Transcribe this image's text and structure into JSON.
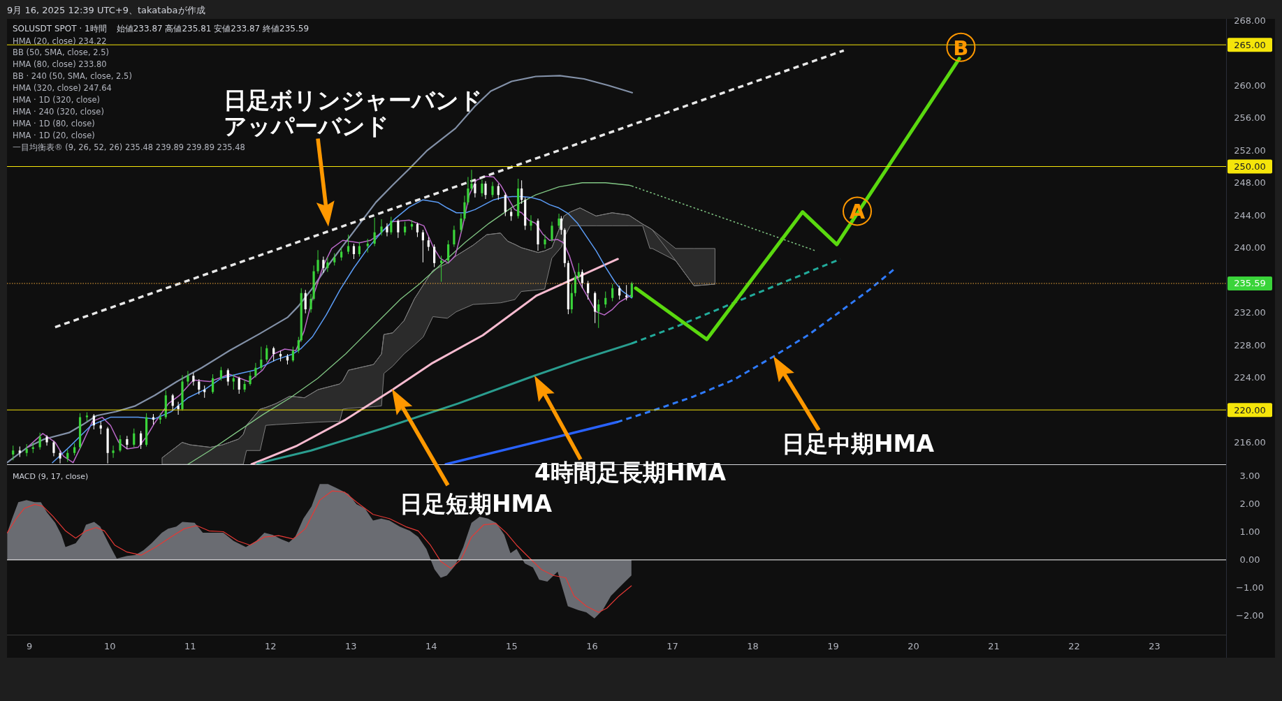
{
  "chart_data": [
    {
      "type": "candlestick",
      "title": "SOLUSDT SPOT · 1時間",
      "subtitle": "始値233.87 高値235.81 安値233.87 終値235.59",
      "xlim": [
        8.72,
        23.89
      ],
      "ylim": [
        213.3,
        268.2
      ],
      "tick_labels": "y",
      "yticks": [
        {
          "value": 216,
          "label": "216.00"
        },
        {
          "value": 224,
          "label": "224.00"
        },
        {
          "value": 228,
          "label": "228.00"
        },
        {
          "value": 232,
          "label": "232.00"
        },
        {
          "value": 240,
          "label": "240.00"
        },
        {
          "value": 244,
          "label": "244.00"
        },
        {
          "value": 248,
          "label": "248.00"
        },
        {
          "value": 252,
          "label": "252.00"
        },
        {
          "value": 256,
          "label": "256.00"
        },
        {
          "value": 260,
          "label": "260.00"
        },
        {
          "value": 268,
          "label": "268.00"
        }
      ],
      "ref_lines": [
        {
          "axis": "y",
          "value": 265,
          "label": "265.00",
          "color": "#f5e50a"
        },
        {
          "axis": "y",
          "value": 250,
          "label": "250.00",
          "color": "#f5e50a"
        },
        {
          "axis": "y",
          "value": 220,
          "label": "220.00",
          "color": "#f5e50a"
        },
        {
          "axis": "y",
          "value": 235.59,
          "label": "235.59",
          "color": "#f2a93b",
          "line_style": "dotted"
        }
      ],
      "annotations": [
        "9月 16, 2025 12:39 UTC+9、takatabaが作成",
        "HMA (20, close) 234.22",
        "BB (50, SMA, close, 2.5)",
        "HMA (80, close) 233.80",
        "BB · 240 (50, SMA, close, 2.5)",
        "HMA (320, close) 247.64",
        "HMA · 1D (320, close)",
        "HMA · 240 (320, close)",
        "HMA · 1D (80, close)",
        "HMA · 1D (20, close)",
        "一目均衡表® (9, 26, 52, 26) 235.48 239.89 239.89 235.48",
        "日足ボリンジャーバンドアッパーバンド",
        "日足短期HMA",
        "4時間足長期HMA",
        "日足中期HMA",
        {
          "text": "A",
          "x": 19.3,
          "y": 244.5
        },
        {
          "text": "B",
          "x": 20.59,
          "y": 264.7
        }
      ],
      "series": [
        {
          "x": [
            8.796,
            8.879,
            8.965,
            9.044,
            9.13,
            9.216,
            9.302,
            9.381,
            9.474,
            9.56,
            9.629,
            9.715,
            9.801,
            9.887,
            9.973,
            10.042,
            10.128,
            10.214,
            10.3,
            10.386,
            10.455,
            10.541,
            10.627,
            10.696,
            10.782,
            10.851,
            10.902,
            10.971,
            11.04,
            11.109,
            11.178,
            11.281,
            11.384,
            11.47,
            11.539,
            11.608,
            11.677,
            11.746,
            11.814,
            11.883,
            11.952,
            12.038,
            12.124,
            12.21,
            12.279,
            12.348,
            12.382,
            12.434,
            12.502,
            12.537,
            12.589,
            12.657,
            12.709,
            12.795,
            12.881,
            12.967,
            13.036,
            13.105,
            13.208,
            13.294,
            13.38,
            13.449,
            13.5,
            13.587,
            13.672,
            13.758,
            13.827,
            13.896,
            13.965,
            14.037,
            14.124,
            14.211,
            14.283,
            14.37,
            14.414,
            14.457,
            14.501,
            14.544,
            14.631,
            14.675,
            14.762,
            14.834,
            14.921,
            14.994,
            15.081,
            15.124,
            15.168,
            15.24,
            15.327,
            15.414,
            15.501,
            15.588,
            15.617,
            15.66,
            15.704,
            15.747,
            15.791,
            15.834,
            15.878,
            15.95,
            16.037,
            16.081,
            16.168,
            16.254,
            16.341,
            16.428,
            16.495
          ],
          "ohlc": [
            [
              214.5,
              215.6,
              213.8,
              215.0
            ],
            [
              215.0,
              215.5,
              214.2,
              214.7
            ],
            [
              214.7,
              215.8,
              214.3,
              215.2
            ],
            [
              215.2,
              216.0,
              214.7,
              215.4
            ],
            [
              215.4,
              217.2,
              215.1,
              216.7
            ],
            [
              216.7,
              216.9,
              215.6,
              216.0
            ],
            [
              216.0,
              216.2,
              214.3,
              214.7
            ],
            [
              214.7,
              215.0,
              213.4,
              214.0
            ],
            [
              214.0,
              215.1,
              213.6,
              214.7
            ],
            [
              214.7,
              215.9,
              214.4,
              215.4
            ],
            [
              215.4,
              219.6,
              215.2,
              219.1
            ],
            [
              219.1,
              219.7,
              218.6,
              219.3
            ],
            [
              219.3,
              219.5,
              217.6,
              218.1
            ],
            [
              218.1,
              218.6,
              217.0,
              217.7
            ],
            [
              217.7,
              217.9,
              213.4,
              214.7
            ],
            [
              214.7,
              215.6,
              214.1,
              215.0
            ],
            [
              215.0,
              216.9,
              214.8,
              216.4
            ],
            [
              216.4,
              216.8,
              215.2,
              215.7
            ],
            [
              215.7,
              217.7,
              215.4,
              217.1
            ],
            [
              217.1,
              217.4,
              215.2,
              215.7
            ],
            [
              215.7,
              219.6,
              215.5,
              219.1
            ],
            [
              219.1,
              219.5,
              218.2,
              218.8
            ],
            [
              218.8,
              219.6,
              218.3,
              219.1
            ],
            [
              219.1,
              222.4,
              218.9,
              221.8
            ],
            [
              221.8,
              222.0,
              219.9,
              220.5
            ],
            [
              220.5,
              221.0,
              219.4,
              220.1
            ],
            [
              220.1,
              224.3,
              219.9,
              223.5
            ],
            [
              223.5,
              224.8,
              223.0,
              224.2
            ],
            [
              224.2,
              224.6,
              223.0,
              223.5
            ],
            [
              223.5,
              223.8,
              221.9,
              222.5
            ],
            [
              222.5,
              223.0,
              221.5,
              222.2
            ],
            [
              222.2,
              224.4,
              222.0,
              223.9
            ],
            [
              223.9,
              225.3,
              223.6,
              224.9
            ],
            [
              224.9,
              225.1,
              223.0,
              223.5
            ],
            [
              223.5,
              224.4,
              222.5,
              223.9
            ],
            [
              223.9,
              224.1,
              222.0,
              222.5
            ],
            [
              222.5,
              223.7,
              222.2,
              223.2
            ],
            [
              223.2,
              224.7,
              223.0,
              224.2
            ],
            [
              224.2,
              225.8,
              224.0,
              225.2
            ],
            [
              225.2,
              227.8,
              224.9,
              226.2
            ],
            [
              226.2,
              228.0,
              225.9,
              227.6
            ],
            [
              227.6,
              227.8,
              226.0,
              226.9
            ],
            [
              226.9,
              227.3,
              226.0,
              226.6
            ],
            [
              226.6,
              226.9,
              225.6,
              226.1
            ],
            [
              226.1,
              227.8,
              225.9,
              227.3
            ],
            [
              227.3,
              229.0,
              227.0,
              228.6
            ],
            [
              228.6,
              235.0,
              228.4,
              234.4
            ],
            [
              234.4,
              234.8,
              231.9,
              232.4
            ],
            [
              232.4,
              234.3,
              232.0,
              233.7
            ],
            [
              233.7,
              237.8,
              233.5,
              237.1
            ],
            [
              237.1,
              239.7,
              236.8,
              238.5
            ],
            [
              238.5,
              238.9,
              236.9,
              237.5
            ],
            [
              237.5,
              238.8,
              237.0,
              238.2
            ],
            [
              238.2,
              239.3,
              237.8,
              238.8
            ],
            [
              238.8,
              240.0,
              238.4,
              239.5
            ],
            [
              239.5,
              241.6,
              239.2,
              240.2
            ],
            [
              240.2,
              240.5,
              238.6,
              239.2
            ],
            [
              239.2,
              240.7,
              238.9,
              240.2
            ],
            [
              240.2,
              241.1,
              239.4,
              240.5
            ],
            [
              240.5,
              243.7,
              240.2,
              241.9
            ],
            [
              241.9,
              243.5,
              241.5,
              242.6
            ],
            [
              242.6,
              243.0,
              241.4,
              241.9
            ],
            [
              241.9,
              243.8,
              241.6,
              243.3
            ],
            [
              243.3,
              243.5,
              241.2,
              241.9
            ],
            [
              241.9,
              243.2,
              241.5,
              242.6
            ],
            [
              242.6,
              243.4,
              242.2,
              242.9
            ],
            [
              242.9,
              243.1,
              241.3,
              241.9
            ],
            [
              241.9,
              242.2,
              238.2,
              240.9
            ],
            [
              240.9,
              241.3,
              239.6,
              240.1
            ],
            [
              240.1,
              240.4,
              237.6,
              238.1
            ],
            [
              238.1,
              239.0,
              235.8,
              238.4
            ],
            [
              238.4,
              240.9,
              238.1,
              240.4
            ],
            [
              240.4,
              242.7,
              240.1,
              242.2
            ],
            [
              242.2,
              244.2,
              241.9,
              243.6
            ],
            [
              243.6,
              246.4,
              243.3,
              245.6
            ],
            [
              245.6,
              248.7,
              245.3,
              247.3
            ],
            [
              247.3,
              249.6,
              247.0,
              247.9
            ],
            [
              247.9,
              248.3,
              246.2,
              246.7
            ],
            [
              246.7,
              248.4,
              246.3,
              247.9
            ],
            [
              247.9,
              248.2,
              246.0,
              246.5
            ],
            [
              246.5,
              248.1,
              246.2,
              247.6
            ],
            [
              247.6,
              247.9,
              245.9,
              246.5
            ],
            [
              246.5,
              246.8,
              243.9,
              244.4
            ],
            [
              244.4,
              244.8,
              243.3,
              243.9
            ],
            [
              243.9,
              248.5,
              243.6,
              247.3
            ],
            [
              247.3,
              248.3,
              245.4,
              245.9
            ],
            [
              245.9,
              246.2,
              242.2,
              242.7
            ],
            [
              242.7,
              244.0,
              242.1,
              243.3
            ],
            [
              243.3,
              243.6,
              239.6,
              240.4
            ],
            [
              240.4,
              241.6,
              239.9,
              241.0
            ],
            [
              241.0,
              243.2,
              240.7,
              242.7
            ],
            [
              242.7,
              244.2,
              242.4,
              243.6
            ],
            [
              243.6,
              243.9,
              241.6,
              242.2
            ],
            [
              242.2,
              242.4,
              237.6,
              238.1
            ],
            [
              238.1,
              238.4,
              231.8,
              232.4
            ],
            [
              232.4,
              235.5,
              231.9,
              234.4
            ],
            [
              234.4,
              237.0,
              234.0,
              236.4
            ],
            [
              236.4,
              238.1,
              236.0,
              237.0
            ],
            [
              237.0,
              237.3,
              235.0,
              235.6
            ],
            [
              235.6,
              235.9,
              233.6,
              234.4
            ],
            [
              234.4,
              234.6,
              230.7,
              232.1
            ],
            [
              232.1,
              233.6,
              230.1,
              233.0
            ],
            [
              233.0,
              234.6,
              232.6,
              233.8
            ],
            [
              233.8,
              235.5,
              233.4,
              235.0
            ],
            [
              235.0,
              235.3,
              233.6,
              234.1
            ],
            [
              234.1,
              235.4,
              233.5,
              233.9
            ],
            [
              233.87,
              235.81,
              233.87,
              235.59
            ]
          ],
          "colors": [
            "#3ad43a",
            "#ffffff",
            "#3ad43a",
            "#3ad43a",
            "#3ad43a",
            "#ffffff",
            "#ffffff",
            "#ffffff",
            "#3ad43a",
            "#3ad43a",
            "#3ad43a",
            "#3ad43a",
            "#ffffff",
            "#ffffff",
            "#ffffff",
            "#3ad43a",
            "#3ad43a",
            "#ffffff",
            "#3ad43a",
            "#ffffff",
            "#3ad43a",
            "#ffffff",
            "#3ad43a",
            "#3ad43a",
            "#ffffff",
            "#ffffff",
            "#3ad43a",
            "#3ad43a",
            "#ffffff",
            "#ffffff",
            "#ffffff",
            "#3ad43a",
            "#3ad43a",
            "#ffffff",
            "#3ad43a",
            "#ffffff",
            "#3ad43a",
            "#3ad43a",
            "#3ad43a",
            "#3ad43a",
            "#3ad43a",
            "#ffffff",
            "#ffffff",
            "#ffffff",
            "#3ad43a",
            "#3ad43a",
            "#3ad43a",
            "#ffffff",
            "#3ad43a",
            "#3ad43a",
            "#3ad43a",
            "#ffffff",
            "#3ad43a",
            "#3ad43a",
            "#3ad43a",
            "#3ad43a",
            "#ffffff",
            "#3ad43a",
            "#3ad43a",
            "#3ad43a",
            "#3ad43a",
            "#ffffff",
            "#3ad43a",
            "#ffffff",
            "#3ad43a",
            "#3ad43a",
            "#ffffff",
            "#ffffff",
            "#ffffff",
            "#ffffff",
            "#3ad43a",
            "#3ad43a",
            "#3ad43a",
            "#3ad43a",
            "#3ad43a",
            "#3ad43a",
            "#3ad43a",
            "#ffffff",
            "#3ad43a",
            "#ffffff",
            "#3ad43a",
            "#ffffff",
            "#ffffff",
            "#ffffff",
            "#3ad43a",
            "#ffffff",
            "#ffffff",
            "#3ad43a",
            "#ffffff",
            "#3ad43a",
            "#3ad43a",
            "#3ad43a",
            "#ffffff",
            "#ffffff",
            "#ffffff",
            "#3ad43a",
            "#3ad43a",
            "#3ad43a",
            "#ffffff",
            "#ffffff",
            "#ffffff",
            "#3ad43a",
            "#3ad43a",
            "#3ad43a",
            "#ffffff",
            "#ffffff",
            "#3ad43a"
          ]
        },
        {
          "type": "line",
          "color": "#8391a8",
          "x": [
            8.72,
            8.975,
            9.182,
            9.492,
            9.664,
            9.836,
            10.077,
            10.317,
            10.558,
            10.834,
            11.143,
            11.487,
            11.866,
            12.21,
            12.347,
            12.52,
            12.692,
            12.898,
            13.105,
            13.311,
            13.518,
            13.724,
            13.95,
            14.3,
            14.55,
            14.74,
            15.0,
            15.3,
            15.6,
            15.9,
            16.2,
            16.5
          ],
          "values": [
            213.5,
            215.4,
            216.4,
            217.2,
            218.2,
            219.3,
            219.8,
            220.5,
            221.8,
            223.5,
            225.2,
            227.3,
            229.4,
            231.4,
            232.8,
            235.0,
            237.5,
            240.2,
            242.9,
            245.6,
            247.7,
            249.7,
            252.0,
            254.7,
            257.5,
            259.3,
            260.5,
            261.1,
            261.2,
            260.8,
            260.0,
            259.1
          ]
        },
        {
          "type": "line",
          "color": "#7e7e7e",
          "x": [
            10.65,
            10.9,
            11.0,
            11.25,
            11.4,
            11.6,
            11.66,
            11.7,
            11.87,
            11.94,
            12.07,
            12.24,
            12.42,
            12.59,
            12.86,
            12.9,
            12.97,
            13.28,
            13.38,
            13.41,
            13.52,
            13.66,
            13.79,
            13.9,
            14.02,
            14.2,
            14.31,
            14.52,
            14.69,
            14.86,
            14.95,
            15.04,
            15.12,
            15.33,
            15.41,
            15.5,
            15.62,
            15.65,
            15.73,
            15.85,
            16.05,
            16.25,
            16.46,
            16.63,
            16.72,
            16.75,
            17.04,
            17.27,
            17.53
          ],
          "values": [
            214.1,
            216.0,
            215.7,
            215.4,
            215.7,
            216.4,
            217.0,
            218.1,
            220.1,
            220.3,
            220.8,
            221.7,
            221.5,
            222.5,
            223.2,
            223.6,
            224.9,
            225.6,
            226.9,
            229.3,
            229.5,
            231.0,
            233.7,
            235.4,
            237.2,
            238.1,
            239.0,
            240.3,
            241.6,
            241.8,
            240.8,
            240.4,
            240.0,
            239.4,
            239.6,
            240.0,
            243.0,
            243.9,
            244.4,
            244.9,
            243.9,
            244.3,
            244.0,
            242.9,
            242.4,
            242.2,
            238.4,
            235.3,
            235.5
          ],
          "upper": [
            214.1,
            216.0,
            215.7,
            215.4,
            215.7,
            216.4,
            217.0,
            218.1,
            220.1,
            220.3,
            220.8,
            221.7,
            221.5,
            222.5,
            223.2,
            223.6,
            224.9,
            225.6,
            226.9,
            229.3,
            229.5,
            231.0,
            233.7,
            235.4,
            237.2,
            238.1,
            239.0,
            240.3,
            241.6,
            241.8,
            240.8,
            240.4,
            240.0,
            239.4,
            239.6,
            240.0,
            243.0,
            243.9,
            244.4,
            244.9,
            243.9,
            244.3,
            244.0,
            242.9,
            242.4,
            242.2,
            239.9,
            239.9,
            239.9
          ],
          "lower": [
            213.3,
            213.3,
            213.3,
            213.3,
            213.3,
            213.3,
            213.3,
            215.0,
            215.0,
            218.1,
            218.2,
            218.3,
            218.4,
            218.5,
            218.6,
            220.1,
            220.2,
            220.4,
            220.5,
            224.5,
            225.4,
            226.9,
            228.0,
            229.0,
            231.5,
            231.3,
            232.1,
            233.0,
            233.1,
            233.2,
            233.4,
            233.6,
            234.6,
            234.8,
            234.9,
            238.7,
            240.1,
            241.2,
            242.7,
            242.7,
            242.7,
            242.7,
            242.7,
            242.7,
            239.9,
            239.9,
            238.4,
            235.3,
            235.5
          ]
        },
        {
          "type": "line",
          "color": "#81c784",
          "x": [
            10.971,
            11.246,
            11.556,
            11.9,
            12.244,
            12.588,
            12.933,
            13.277,
            13.621,
            13.849,
            14.139,
            14.428,
            14.718,
            15.008,
            15.298,
            15.588,
            15.878,
            16.168,
            16.457,
            16.495
          ],
          "values": [
            213.3,
            215.0,
            217.1,
            219.4,
            221.5,
            223.9,
            226.9,
            230.3,
            233.7,
            235.5,
            238.1,
            240.7,
            243.0,
            245.0,
            246.5,
            247.5,
            248.0,
            248.0,
            247.7,
            247.6
          ]
        },
        {
          "type": "line",
          "color": "#81c784",
          "line_style": "dotted",
          "x": [
            16.495,
            17.762,
            18.785
          ],
          "values": [
            247.6,
            243.2,
            239.6
          ]
        },
        {
          "type": "line",
          "color": "#f8bbd0",
          "x": [
            11.763,
            12.33,
            12.933,
            13.52,
            14.0,
            14.64,
            15.31,
            16.32
          ],
          "values": [
            213.3,
            215.6,
            218.8,
            222.5,
            225.7,
            229.2,
            234.1,
            238.6
          ]
        },
        {
          "type": "line",
          "color": "#2a9d8f",
          "x": [
            11.834,
            12.505,
            13.42,
            14.335,
            15.25,
            15.86,
            16.495
          ],
          "values": [
            213.4,
            215.0,
            217.8,
            220.8,
            224.1,
            226.2,
            228.2
          ]
        },
        {
          "type": "line",
          "color": "#22ab9b",
          "line_style": "dashed",
          "x": [
            16.495,
            17.08,
            17.69,
            18.4,
            19.09
          ],
          "values": [
            228.2,
            230.4,
            232.9,
            235.8,
            238.6
          ]
        },
        {
          "type": "line",
          "color": "#2962ff",
          "x": [
            14.18,
            16.31
          ],
          "values": [
            213.3,
            218.5
          ]
        },
        {
          "type": "line",
          "color": "#2f7bff",
          "line_style": "dashed",
          "x": [
            16.31,
            16.75,
            17.25,
            17.76,
            18.26,
            18.7,
            19.07,
            19.45,
            19.79
          ],
          "values": [
            218.5,
            219.9,
            221.6,
            223.7,
            226.6,
            229.3,
            232.0,
            234.8,
            237.6
          ]
        },
        {
          "type": "line",
          "color": "#ba68c8",
          "x": [
            8.975,
            9.165,
            9.32,
            9.423,
            9.543,
            9.664,
            9.784,
            9.905,
            10.008,
            10.111,
            10.214,
            10.352,
            10.455,
            10.558,
            10.73,
            10.868,
            11.04,
            11.246,
            11.487,
            11.728,
            11.9,
            12.038,
            12.176,
            12.313,
            12.417,
            12.52,
            12.657,
            12.761,
            12.898,
            13.105,
            13.242,
            13.346,
            13.518,
            13.724,
            13.907,
            14.023,
            14.11,
            14.211,
            14.298,
            14.385,
            14.472,
            14.559,
            14.675,
            14.776,
            14.863,
            14.95,
            15.037,
            15.124,
            15.211,
            15.298,
            15.385,
            15.472,
            15.573,
            15.646,
            15.718,
            15.791,
            15.878,
            15.965,
            16.052,
            16.153,
            16.254,
            16.342,
            16.429,
            16.495
          ],
          "values": [
            215.4,
            217.1,
            216.0,
            214.3,
            213.5,
            216.0,
            218.6,
            219.1,
            218.1,
            216.0,
            215.2,
            215.4,
            216.7,
            218.4,
            220.8,
            221.8,
            223.7,
            223.5,
            224.4,
            223.5,
            224.9,
            226.9,
            227.5,
            227.3,
            229.7,
            233.7,
            237.8,
            239.9,
            240.9,
            240.6,
            240.9,
            241.6,
            243.2,
            243.4,
            242.7,
            240.1,
            238.7,
            238.1,
            239.0,
            242.4,
            246.5,
            248.3,
            248.8,
            248.7,
            247.7,
            246.2,
            244.7,
            244.3,
            243.4,
            243.0,
            241.7,
            240.9,
            241.0,
            240.6,
            239.0,
            236.7,
            235.1,
            233.6,
            232.1,
            231.7,
            232.4,
            233.3,
            233.8,
            234.2
          ]
        },
        {
          "type": "line",
          "color": "#5b9cf6",
          "x": [
            9.285,
            9.492,
            9.767,
            10.008,
            10.352,
            10.558,
            10.765,
            10.971,
            11.178,
            11.384,
            11.625,
            11.797,
            12.072,
            12.279,
            12.382,
            12.52,
            12.692,
            12.864,
            13.036,
            13.208,
            13.38,
            13.552,
            13.724,
            13.896,
            14.081,
            14.197,
            14.312,
            14.428,
            14.544,
            14.66,
            14.776,
            14.892,
            15.008,
            15.124,
            15.24,
            15.356,
            15.472,
            15.588,
            15.704,
            15.82,
            15.936,
            16.052,
            16.168,
            16.283,
            16.37,
            16.495
          ],
          "values": [
            213.5,
            215.4,
            218.1,
            219.1,
            219.1,
            218.9,
            219.8,
            221.5,
            222.5,
            223.9,
            224.5,
            224.9,
            226.2,
            226.9,
            227.6,
            229.0,
            231.7,
            234.8,
            237.5,
            239.9,
            241.9,
            243.6,
            245.0,
            245.9,
            245.6,
            244.9,
            244.3,
            244.3,
            244.7,
            245.3,
            245.9,
            246.2,
            246.3,
            246.3,
            246.2,
            245.9,
            245.3,
            244.9,
            244.2,
            243.0,
            241.3,
            239.6,
            237.6,
            235.8,
            234.7,
            233.8
          ]
        },
        {
          "type": "line",
          "color": "#e8e8e8",
          "line_style": "dashed",
          "x": [
            9.319,
            19.133
          ],
          "values": [
            230.2,
            264.3
          ]
        },
        {
          "type": "line",
          "color": "#5ad90f",
          "x": [
            16.544,
            17.428,
            18.62,
            19.046,
            20.57
          ],
          "values": [
            235.0,
            228.7,
            244.4,
            240.4,
            263.3
          ]
        }
      ]
    },
    {
      "type": "area",
      "title": "MACD (9, 17, close)",
      "xlim": [
        8.72,
        23.89
      ],
      "ylim": [
        -2.68,
        3.4
      ],
      "xticks": [
        9,
        10,
        11,
        12,
        13,
        14,
        15,
        16,
        17,
        18,
        19,
        20,
        21,
        22,
        23
      ],
      "yticks": [
        {
          "value": 3,
          "label": "3.00"
        },
        {
          "value": 2,
          "label": "2.00"
        },
        {
          "value": 1,
          "label": "1.00"
        },
        {
          "value": 0,
          "label": "0.00"
        },
        {
          "value": -1,
          "label": "−1.00"
        },
        {
          "value": -2,
          "label": "−2.00"
        }
      ],
      "ref_lines": [
        {
          "axis": "y",
          "value": 0,
          "color": "#ffffff"
        }
      ],
      "series": [
        {
          "color": "#6a6c72",
          "x": [
            8.723,
            8.784,
            8.861,
            8.963,
            9.065,
            9.142,
            9.218,
            9.32,
            9.397,
            9.448,
            9.575,
            9.652,
            9.703,
            9.805,
            9.881,
            9.984,
            10.086,
            10.213,
            10.315,
            10.417,
            10.519,
            10.647,
            10.724,
            10.826,
            10.902,
            11.055,
            11.157,
            11.285,
            11.412,
            11.54,
            11.693,
            11.821,
            11.923,
            12.025,
            12.127,
            12.229,
            12.306,
            12.408,
            12.51,
            12.612,
            12.714,
            12.816,
            12.969,
            13.071,
            13.173,
            13.275,
            13.377,
            13.479,
            13.607,
            13.734,
            13.837,
            13.939,
            14.04,
            14.117,
            14.194,
            14.296,
            14.398,
            14.5,
            14.602,
            14.704,
            14.806,
            14.908,
            14.985,
            15.061,
            15.163,
            15.265,
            15.342,
            15.444,
            15.572,
            15.699,
            15.827,
            15.929,
            16.03,
            16.133,
            16.235,
            16.388,
            16.49
          ],
          "values": [
            0.97,
            1.48,
            2.07,
            2.14,
            2.07,
            2.07,
            1.7,
            1.33,
            0.9,
            0.46,
            0.6,
            0.9,
            1.26,
            1.36,
            1.19,
            0.6,
            0.05,
            0.14,
            0.17,
            0.34,
            0.6,
            0.97,
            1.12,
            1.19,
            1.36,
            1.33,
            0.97,
            0.97,
            0.97,
            0.68,
            0.46,
            0.68,
            0.97,
            0.9,
            0.75,
            0.63,
            0.82,
            1.48,
            1.92,
            2.72,
            2.72,
            2.58,
            2.36,
            1.99,
            1.85,
            1.41,
            1.48,
            1.41,
            1.19,
            1.04,
            0.82,
            0.39,
            -0.34,
            -0.64,
            -0.56,
            -0.2,
            0.46,
            1.33,
            1.55,
            1.48,
            1.33,
            0.9,
            0.24,
            0.39,
            -0.13,
            -0.27,
            -0.71,
            -0.78,
            -0.42,
            -1.66,
            -1.8,
            -1.88,
            -2.1,
            -1.8,
            -1.29,
            -0.85,
            -0.56
          ]
        },
        {
          "type": "line",
          "color": "#e53935",
          "x": [
            8.723,
            8.835,
            8.937,
            9.065,
            9.167,
            9.295,
            9.448,
            9.575,
            9.703,
            9.83,
            9.932,
            10.06,
            10.213,
            10.392,
            10.571,
            10.775,
            10.928,
            11.081,
            11.234,
            11.412,
            11.591,
            11.744,
            11.923,
            12.101,
            12.28,
            12.433,
            12.612,
            12.765,
            12.918,
            13.071,
            13.275,
            13.479,
            13.683,
            13.837,
            13.989,
            14.117,
            14.244,
            14.372,
            14.5,
            14.653,
            14.806,
            14.933,
            15.061,
            15.214,
            15.367,
            15.52,
            15.673,
            15.776,
            15.929,
            16.082,
            16.184,
            16.337,
            16.49
          ],
          "values": [
            0.97,
            1.48,
            1.85,
            1.99,
            1.92,
            1.55,
            1.04,
            0.78,
            1.04,
            1.16,
            1.04,
            0.53,
            0.28,
            0.17,
            0.46,
            0.85,
            1.12,
            1.23,
            1.04,
            1.01,
            0.68,
            0.53,
            0.82,
            0.87,
            0.75,
            1.12,
            2.14,
            2.47,
            2.43,
            2.07,
            1.63,
            1.48,
            1.19,
            1.04,
            0.53,
            -0.05,
            -0.3,
            0.02,
            0.82,
            1.26,
            1.3,
            0.97,
            0.53,
            0.09,
            -0.34,
            -0.56,
            -0.64,
            -1.29,
            -1.66,
            -1.88,
            -1.73,
            -1.29,
            -0.93
          ]
        }
      ]
    }
  ]
}
